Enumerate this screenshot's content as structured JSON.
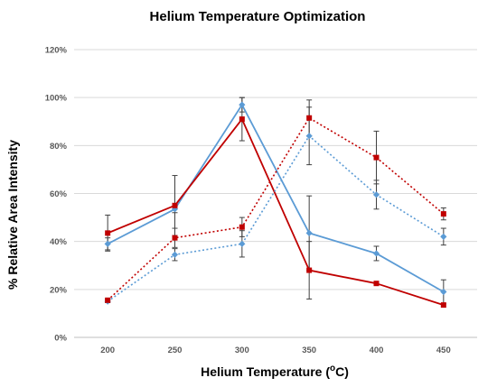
{
  "chart_data": {
    "type": "line",
    "title": "Helium Temperature Optimization",
    "xlabel": "Helium Temperature (",
    "xlabel_sup": "o",
    "xlabel_end": "C)",
    "ylabel": "% Relative Area Intensity",
    "categories": [
      "200",
      "250",
      "300",
      "350",
      "400",
      "450"
    ],
    "ylim": [
      0,
      120
    ],
    "yticks": [
      0,
      20,
      40,
      60,
      80,
      100,
      120
    ],
    "ytick_labels": [
      "0%",
      "20%",
      "40%",
      "60%",
      "80%",
      "100%",
      "120%"
    ],
    "grid": {
      "y": true,
      "x": false
    },
    "legend": "none",
    "series": [
      {
        "color": "#5b9bd5",
        "line_style": "solid",
        "marker": "diamond",
        "values": [
          39,
          53.5,
          97,
          43.5,
          35,
          19
        ],
        "errors": [
          2.5,
          1.5,
          3,
          15.5,
          3,
          5
        ]
      },
      {
        "color": "#c00000",
        "line_style": "solid",
        "marker": "square",
        "values": [
          43.5,
          55,
          91,
          28,
          22.5,
          13.5
        ],
        "errors": [
          7.5,
          12.5,
          9,
          12,
          0,
          0
        ]
      },
      {
        "color": "#5b9bd5",
        "line_style": "dotted",
        "marker": "diamond",
        "values": [
          15,
          34.5,
          39,
          84,
          59.5,
          42
        ],
        "errors": [
          0.5,
          2.5,
          5.5,
          12,
          6,
          3.5
        ]
      },
      {
        "color": "#c00000",
        "line_style": "dotted",
        "marker": "square",
        "values": [
          15.5,
          41.5,
          46,
          91.5,
          75,
          51.5
        ],
        "errors": [
          0.5,
          4,
          4,
          7.5,
          11,
          2.5
        ]
      }
    ]
  }
}
